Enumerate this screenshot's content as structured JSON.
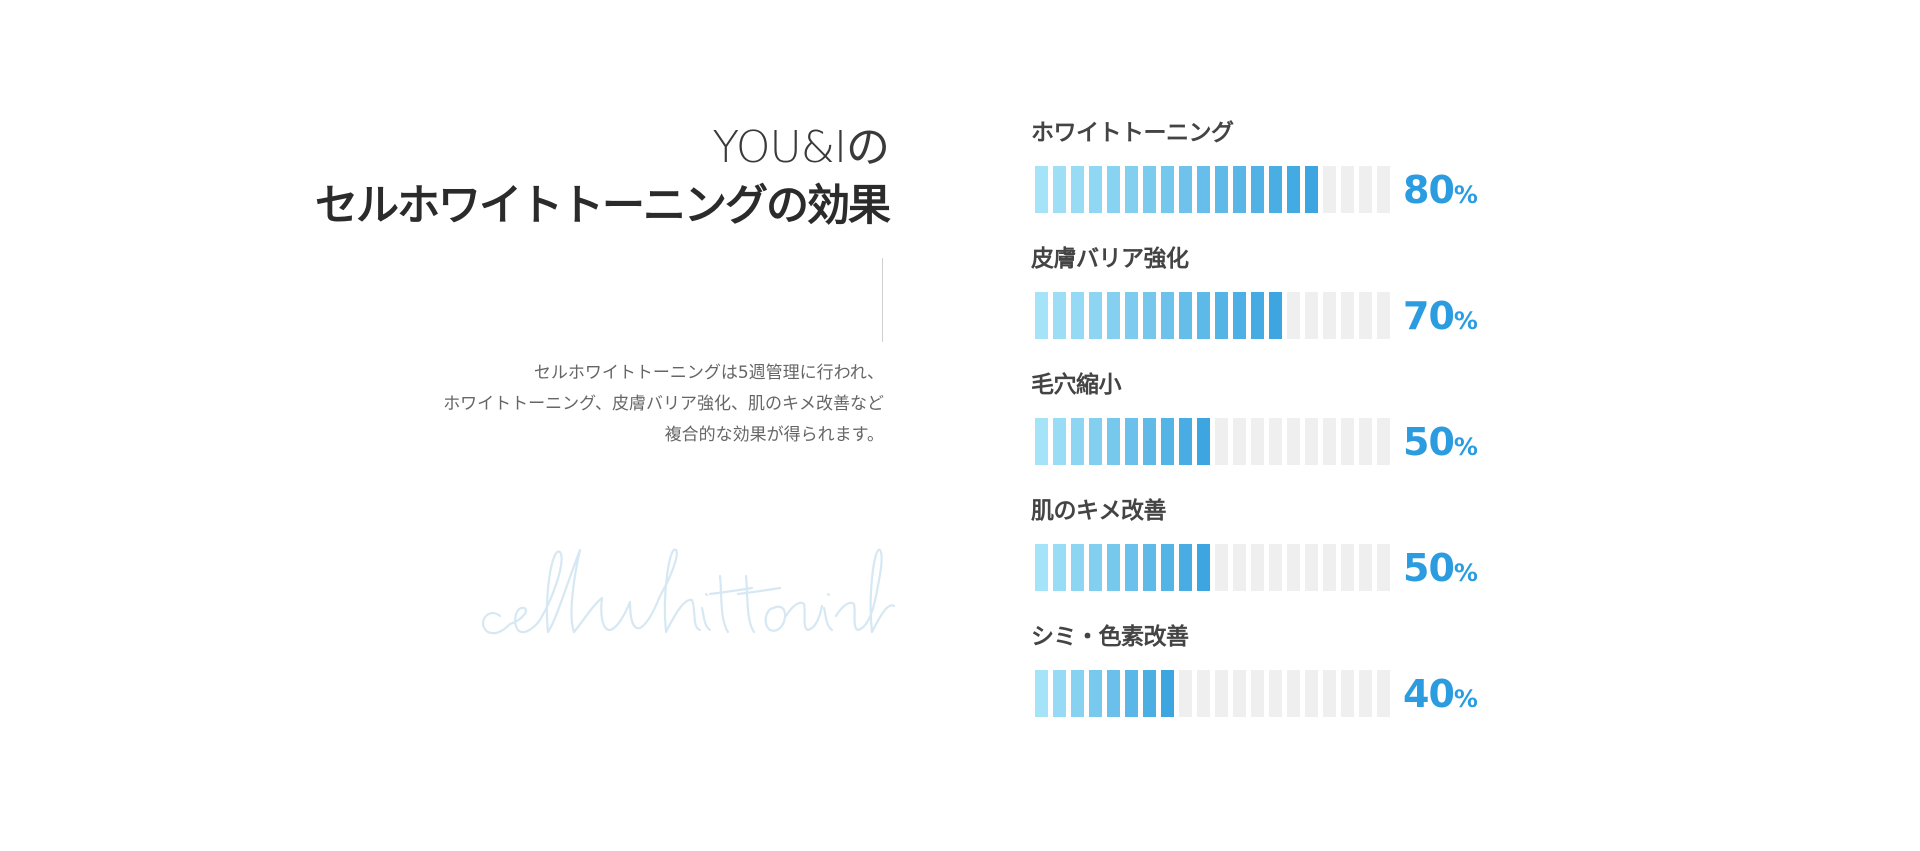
{
  "heading": {
    "line1": "YOU&Iの",
    "line2": "セルホワイトトーニングの効果"
  },
  "description": [
    "セルホワイトトーニングは5週管理に行われ、",
    "ホワイトトーニング、皮膚バリア強化、肌のキメ改善など",
    "複合的な効果が得られます。"
  ],
  "watermark": {
    "text": "cellwhittoninh",
    "color": "#d6e8f3"
  },
  "colors": {
    "segment_light": "#a5e3f8",
    "segment_dark": "#3da6e0",
    "segment_empty": "#efefef",
    "value_text": "#2b9ce0"
  },
  "chart_data": {
    "type": "bar",
    "orientation": "horizontal",
    "segments_total": 20,
    "xlim": [
      0,
      100
    ],
    "unit": "%",
    "categories": [
      "ホワイトトーニング",
      "皮膚バリア強化",
      "毛穴縮小",
      "肌のキメ改善",
      "シミ・色素改善"
    ],
    "values": [
      80,
      70,
      50,
      50,
      40
    ]
  }
}
